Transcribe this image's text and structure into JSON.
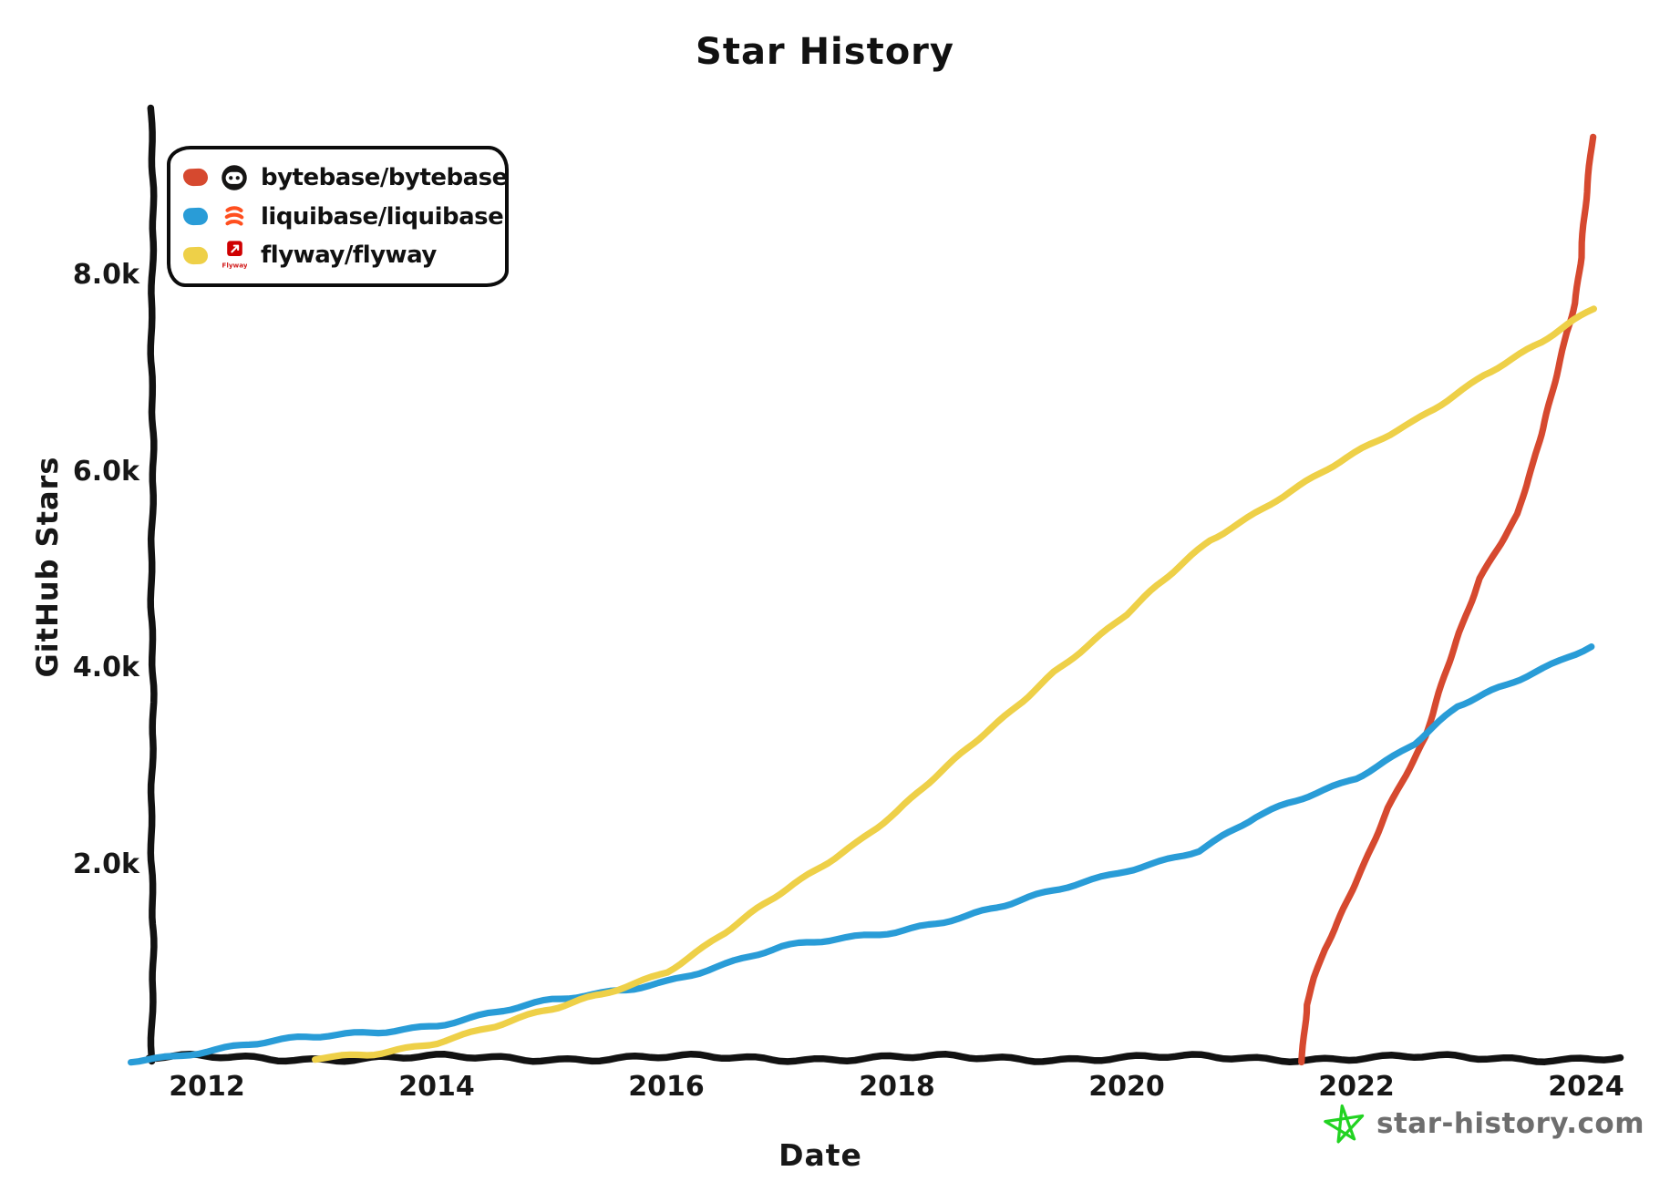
{
  "title": "Star History",
  "watermark": {
    "text": "star-history.com"
  },
  "legend": {
    "flyway_logo_caption": "Flyway"
  },
  "colors": {
    "bytebase_red": "#d6492f",
    "liquibase_blue": "#299cd7",
    "flyway_yellow": "#eed048",
    "axis_black": "#121212",
    "star_green": "#22d322",
    "watermark_gray": "#6e6e6e"
  },
  "chart_data": {
    "type": "line",
    "title": "Star History",
    "xlabel": "Date",
    "ylabel": "GitHub Stars",
    "grid": false,
    "legend_position": "top-left",
    "xlim": [
      2011.3,
      2024.35
    ],
    "ylim": [
      0,
      9650
    ],
    "x_ticks": [
      2012,
      2014,
      2016,
      2018,
      2020,
      2022,
      2024
    ],
    "y_ticks": [
      {
        "value": 2000,
        "label": "2.0k"
      },
      {
        "value": 4000,
        "label": "4.0k"
      },
      {
        "value": 6000,
        "label": "6.0k"
      },
      {
        "value": 8000,
        "label": "8.0k"
      }
    ],
    "series": [
      {
        "name": "bytebase/bytebase",
        "color": "#d6492f",
        "points": [
          [
            2021.52,
            0
          ],
          [
            2021.56,
            550
          ],
          [
            2021.63,
            820
          ],
          [
            2021.72,
            1090
          ],
          [
            2021.82,
            1330
          ],
          [
            2021.92,
            1600
          ],
          [
            2022.05,
            1950
          ],
          [
            2022.27,
            2570
          ],
          [
            2022.42,
            2880
          ],
          [
            2022.6,
            3260
          ],
          [
            2022.75,
            3820
          ],
          [
            2022.9,
            4370
          ],
          [
            2023.07,
            4910
          ],
          [
            2023.25,
            5240
          ],
          [
            2023.4,
            5530
          ],
          [
            2023.55,
            6080
          ],
          [
            2023.63,
            6450
          ],
          [
            2023.72,
            6900
          ],
          [
            2023.82,
            7380
          ],
          [
            2023.9,
            7690
          ],
          [
            2023.96,
            8150
          ],
          [
            2024.01,
            8850
          ],
          [
            2024.05,
            9390
          ]
        ]
      },
      {
        "name": "liquibase/liquibase",
        "color": "#299cd7",
        "points": [
          [
            2011.35,
            0
          ],
          [
            2011.7,
            45
          ],
          [
            2012,
            95
          ],
          [
            2012.5,
            165
          ],
          [
            2013,
            230
          ],
          [
            2013.5,
            295
          ],
          [
            2014,
            360
          ],
          [
            2014.5,
            470
          ],
          [
            2015,
            590
          ],
          [
            2015.44,
            676
          ],
          [
            2016,
            810
          ],
          [
            2016.5,
            965
          ],
          [
            2017,
            1130
          ],
          [
            2017.5,
            1230
          ],
          [
            2018,
            1320
          ],
          [
            2018.6,
            1455
          ],
          [
            2019,
            1575
          ],
          [
            2019.5,
            1760
          ],
          [
            2020,
            1940
          ],
          [
            2020.63,
            2130
          ],
          [
            2021.13,
            2455
          ],
          [
            2021.6,
            2690
          ],
          [
            2022,
            2880
          ],
          [
            2022.5,
            3220
          ],
          [
            2022.87,
            3575
          ],
          [
            2023.3,
            3800
          ],
          [
            2023.7,
            4030
          ],
          [
            2024.05,
            4230
          ]
        ]
      },
      {
        "name": "flyway/flyway",
        "color": "#eed048",
        "points": [
          [
            2012.95,
            0
          ],
          [
            2013.4,
            60
          ],
          [
            2014,
            185
          ],
          [
            2014.5,
            330
          ],
          [
            2015,
            500
          ],
          [
            2015.44,
            676
          ],
          [
            2016,
            905
          ],
          [
            2016.5,
            1280
          ],
          [
            2017,
            1690
          ],
          [
            2017.65,
            2220
          ],
          [
            2018,
            2530
          ],
          [
            2018.5,
            3030
          ],
          [
            2019,
            3550
          ],
          [
            2019.36,
            3950
          ],
          [
            2020,
            4520
          ],
          [
            2020.73,
            5300
          ],
          [
            2021.3,
            5700
          ],
          [
            2021.92,
            6110
          ],
          [
            2022.5,
            6500
          ],
          [
            2023.1,
            6970
          ],
          [
            2023.6,
            7280
          ],
          [
            2024.07,
            7640
          ]
        ]
      }
    ]
  }
}
